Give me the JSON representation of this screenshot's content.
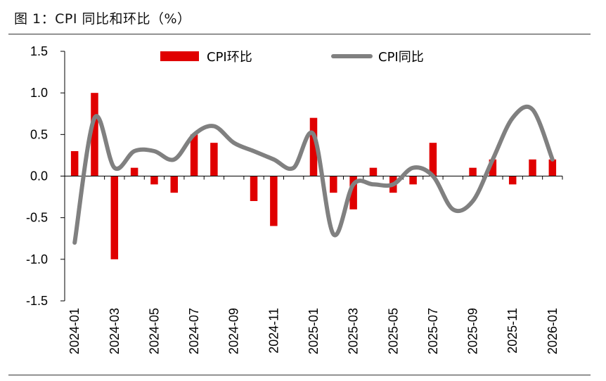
{
  "figure": {
    "title": "图 1：CPI 同比和环比（%）"
  },
  "colors": {
    "bar": "#e00000",
    "line": "#808080"
  },
  "chart_data": {
    "type": "bar+line",
    "title": "图 1：CPI 同比和环比（%）",
    "xlabel": "",
    "ylabel": "",
    "ylim": [
      -1.5,
      1.5
    ],
    "yticks": [
      "1.5",
      "1.0",
      "0.5",
      "0.0",
      "-0.5",
      "-1.0",
      "-1.5"
    ],
    "ytick_values": [
      1.5,
      1.0,
      0.5,
      0.0,
      -0.5,
      -1.0,
      -1.5
    ],
    "legend_position": "top",
    "categories": [
      "2024-01",
      "2024-02",
      "2024-03",
      "2024-04",
      "2024-05",
      "2024-06",
      "2024-07",
      "2024-08",
      "2024-09",
      "2024-10",
      "2024-11",
      "2024-12",
      "2025-01",
      "2025-02",
      "2025-03",
      "2025-04",
      "2025-05",
      "2025-06",
      "2025-07",
      "2025-08",
      "2025-09",
      "2025-10",
      "2025-11",
      "2025-12",
      "2026-01"
    ],
    "xtick_labels": [
      "2024-01",
      "2024-03",
      "2024-05",
      "2024-07",
      "2024-09",
      "2024-11",
      "2025-01",
      "2025-03",
      "2025-05",
      "2025-07",
      "2025-09",
      "2025-11",
      "2026-01"
    ],
    "series": [
      {
        "name": "CPI环比",
        "type": "bar",
        "values": [
          0.3,
          1.0,
          -1.0,
          0.1,
          -0.1,
          -0.2,
          0.5,
          0.4,
          0.0,
          -0.3,
          -0.6,
          0.0,
          0.7,
          -0.2,
          -0.4,
          0.1,
          -0.2,
          -0.1,
          0.4,
          0.0,
          0.1,
          0.2,
          -0.1,
          0.2,
          0.2
        ]
      },
      {
        "name": "CPI同比",
        "type": "line",
        "values": [
          -0.8,
          0.7,
          0.1,
          0.3,
          0.3,
          0.2,
          0.5,
          0.6,
          0.4,
          0.3,
          0.2,
          0.1,
          0.5,
          -0.7,
          -0.1,
          -0.1,
          -0.1,
          0.1,
          0.0,
          -0.4,
          -0.3,
          0.2,
          0.7,
          0.8,
          0.2
        ]
      }
    ]
  }
}
